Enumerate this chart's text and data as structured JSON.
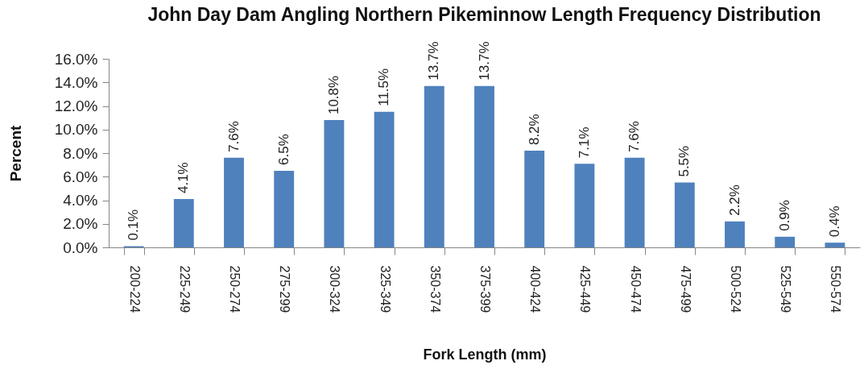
{
  "chart_data": {
    "type": "bar",
    "title": "John Day Dam Angling Northern Pikeminnow Length Frequency Distribution",
    "xlabel": "Fork Length (mm)",
    "ylabel": "Percent",
    "categories": [
      "200-224",
      "225-249",
      "250-274",
      "275-299",
      "300-324",
      "325-349",
      "350-374",
      "375-399",
      "400-424",
      "425-449",
      "450-474",
      "475-499",
      "500-524",
      "525-549",
      "550-574"
    ],
    "values": [
      0.1,
      4.1,
      7.6,
      6.5,
      10.8,
      11.5,
      13.7,
      13.7,
      8.2,
      7.1,
      7.6,
      5.5,
      2.2,
      0.9,
      0.4
    ],
    "value_labels": [
      "0.1%",
      "4.1%",
      "7.6%",
      "6.5%",
      "10.8%",
      "11.5%",
      "13.7%",
      "13.7%",
      "8.2%",
      "7.1%",
      "7.6%",
      "5.5%",
      "2.2%",
      "0.9%",
      "0.4%"
    ],
    "color": "#4f81bd",
    "ylim": [
      0,
      16
    ],
    "yticks": [
      {
        "value": 0,
        "label": "0.0%"
      },
      {
        "value": 2,
        "label": "2.0%"
      },
      {
        "value": 4,
        "label": "4.0%"
      },
      {
        "value": 6,
        "label": "6.0%"
      },
      {
        "value": 8,
        "label": "8.0%"
      },
      {
        "value": 10,
        "label": "10.0%"
      },
      {
        "value": 12,
        "label": "12.0%"
      },
      {
        "value": 14,
        "label": "14.0%"
      },
      {
        "value": 16,
        "label": "16.0%"
      }
    ],
    "grid": false
  }
}
